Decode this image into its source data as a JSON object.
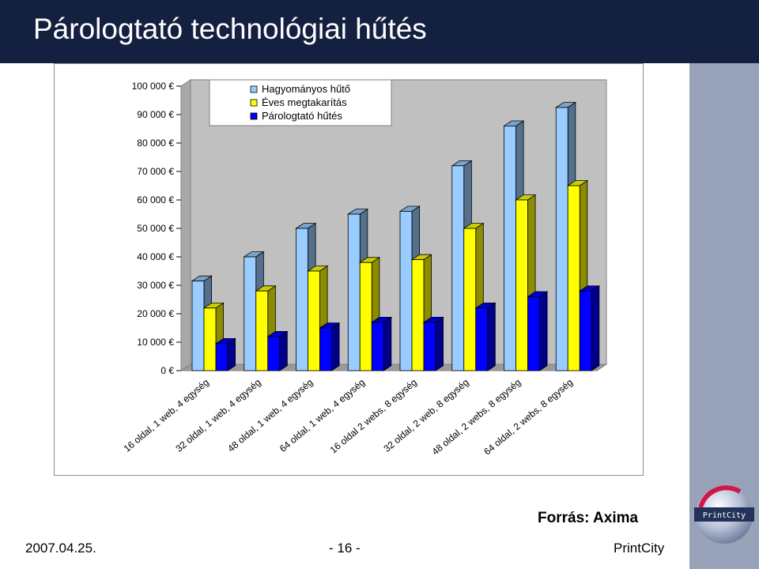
{
  "slide": {
    "title": "Párologtató technológiai hűtés",
    "source": "Forrás: Axima",
    "date": "2007.04.25.",
    "page": "- 16 -",
    "brand": "PrintCity",
    "logo_text": "PrintCity"
  },
  "colors": {
    "title_bar": "#142040",
    "side_band": "#98a2b8"
  },
  "chart_data": {
    "type": "bar",
    "title": "",
    "xlabel": "",
    "ylabel": "",
    "ylim": [
      0,
      100000
    ],
    "yticks": [
      0,
      10000,
      20000,
      30000,
      40000,
      50000,
      60000,
      70000,
      80000,
      90000,
      100000
    ],
    "ytick_labels": [
      "0 €",
      "10 000 €",
      "20 000 €",
      "30 000 €",
      "40 000 €",
      "50 000 €",
      "60 000 €",
      "70 000 €",
      "80 000 €",
      "90 000 €",
      "100 000 €"
    ],
    "categories": [
      "16 oldal, 1 web, 4 egység",
      "32 oldal, 1 web, 4 egység",
      "48 oldal, 1 web, 4 egység",
      "64 oldal, 1 web, 4 egység",
      "16 oldal 2 webs, 8 egység",
      "32 oldal, 2 web, 8 egység",
      "48 oldal, 2 webs, 8 egység",
      "64 oldal, 2 webs, 8 egység"
    ],
    "series": [
      {
        "name": "Hagyományos hűtő",
        "color": "#99ccff",
        "values": [
          31500,
          40000,
          50000,
          55000,
          56000,
          72000,
          86000,
          92500
        ]
      },
      {
        "name": "Éves megtakarítás",
        "color": "#ffff00",
        "values": [
          22000,
          28000,
          35000,
          38000,
          39000,
          50000,
          60000,
          65000
        ]
      },
      {
        "name": "Párologtató hűtés",
        "color": "#0000ff",
        "values": [
          9500,
          12000,
          15000,
          17000,
          17000,
          22000,
          26000,
          28000
        ]
      }
    ],
    "legend": "top-left",
    "grid": false,
    "style": "3d-clustered-column"
  }
}
